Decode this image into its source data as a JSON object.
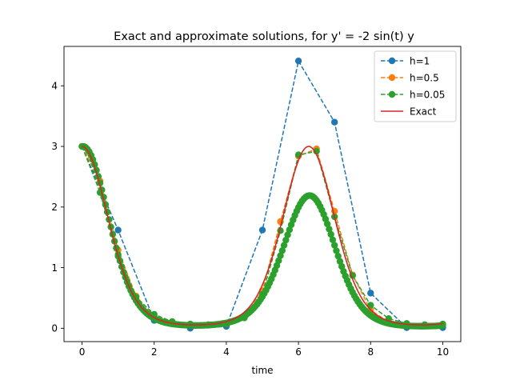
{
  "chart_data": {
    "type": "line",
    "title": "Exact and approximate solutions, for y' = -2 sin(t) y",
    "xlabel": "time",
    "ylabel": "",
    "xlim": [
      -0.5,
      10.5
    ],
    "ylim": [
      -0.22,
      4.65
    ],
    "xticks": [
      0,
      2,
      4,
      6,
      8,
      10
    ],
    "xtick_labels": [
      "0",
      "2",
      "4",
      "6",
      "8",
      "10"
    ],
    "yticks": [
      0,
      1,
      2,
      3,
      4
    ],
    "ytick_labels": [
      "0",
      "1",
      "2",
      "3",
      "4"
    ],
    "grid": false,
    "legend_position": "upper-right",
    "legend": [
      "h=1",
      "h=0.5",
      "h=0.05",
      "Exact"
    ],
    "series": [
      {
        "name": "h=1",
        "style": "dashed-markers",
        "color": "#1f77b4",
        "x": [
          0,
          1,
          2,
          3,
          4,
          5,
          6,
          7,
          8,
          9,
          10
        ],
        "y": [
          3.0,
          1.62,
          0.13,
          0.0,
          0.03,
          1.62,
          4.41,
          3.4,
          0.58,
          0.01,
          0.01
        ]
      },
      {
        "name": "h=0.5",
        "style": "dashed-markers",
        "color": "#ff7f0e",
        "x": [
          0,
          0.5,
          1,
          1.5,
          2,
          2.5,
          3,
          3.5,
          4,
          4.5,
          5,
          5.5,
          6,
          6.5,
          7,
          7.5,
          8,
          8.5,
          9,
          9.5,
          10
        ],
        "y": [
          3.0,
          2.43,
          1.29,
          0.53,
          0.2,
          0.09,
          0.06,
          0.05,
          0.07,
          0.18,
          0.62,
          1.76,
          2.84,
          2.96,
          1.93,
          0.88,
          0.3,
          0.1,
          0.05,
          0.04,
          0.06
        ]
      },
      {
        "name": "h=0.05",
        "style": "dashed-markers",
        "color": "#2ca02c",
        "x": [
          0,
          0.5,
          1,
          1.5,
          2,
          2.5,
          3,
          3.5,
          4,
          4.5,
          5,
          5.5,
          6,
          6.5,
          7,
          7.5,
          8,
          8.5,
          9,
          9.5,
          10
        ],
        "y": [
          3.0,
          2.24,
          1.19,
          0.51,
          0.23,
          0.11,
          0.07,
          0.06,
          0.07,
          0.17,
          0.56,
          1.61,
          2.86,
          2.92,
          1.84,
          0.87,
          0.38,
          0.16,
          0.08,
          0.06,
          0.07
        ]
      },
      {
        "name": "Exact",
        "style": "solid",
        "color": "#d62728",
        "function": "y = 3 exp(2 (cos t - 1))",
        "x": [
          0,
          0.5,
          1,
          1.5,
          2,
          2.5,
          3,
          3.5,
          4,
          4.5,
          5,
          5.5,
          6,
          6.5,
          7,
          7.5,
          8,
          8.5,
          9,
          9.5,
          10
        ],
        "y": [
          3.0,
          2.34,
          1.19,
          0.51,
          0.22,
          0.11,
          0.06,
          0.05,
          0.07,
          0.16,
          0.54,
          1.59,
          2.78,
          2.85,
          1.94,
          0.9,
          0.31,
          0.11,
          0.05,
          0.06,
          0.07
        ]
      }
    ]
  }
}
